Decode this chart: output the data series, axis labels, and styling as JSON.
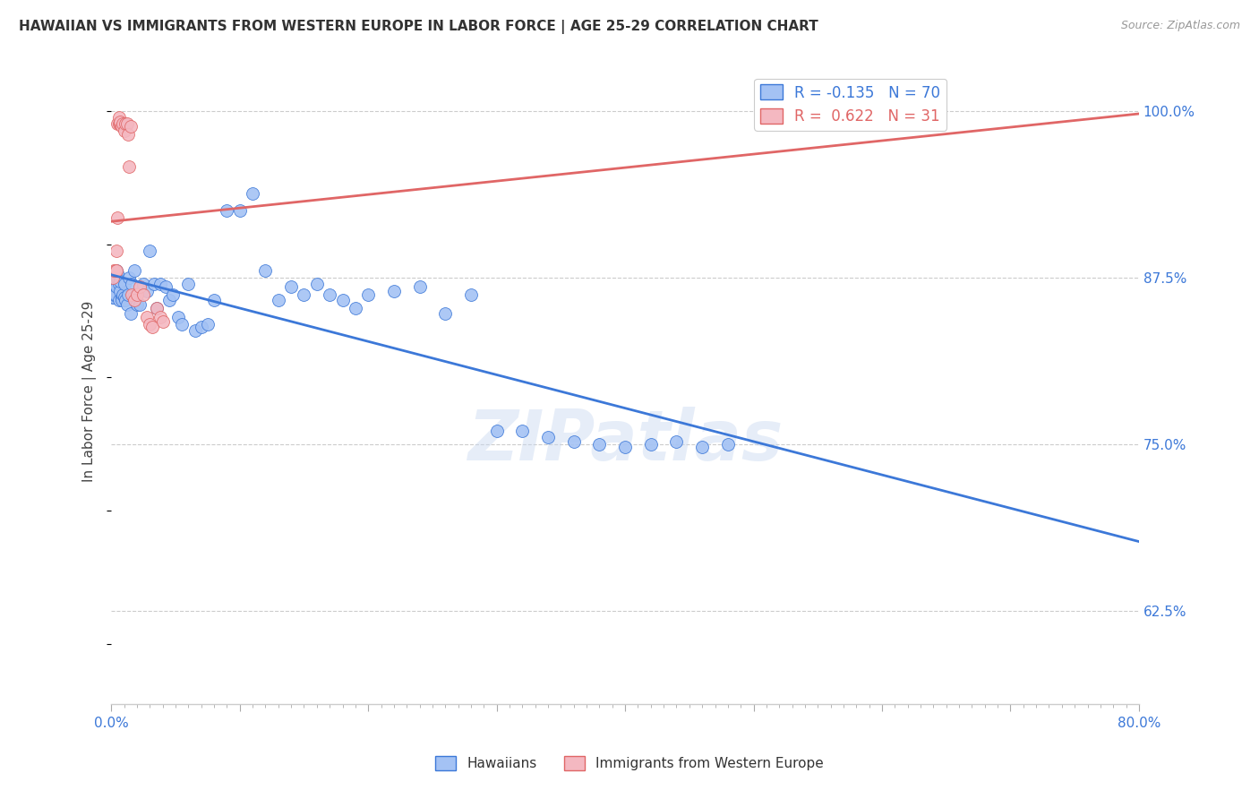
{
  "title": "HAWAIIAN VS IMMIGRANTS FROM WESTERN EUROPE IN LABOR FORCE | AGE 25-29 CORRELATION CHART",
  "source": "Source: ZipAtlas.com",
  "ylabel": "In Labor Force | Age 25-29",
  "ytick_labels": [
    "62.5%",
    "75.0%",
    "87.5%",
    "100.0%"
  ],
  "ytick_values": [
    0.625,
    0.75,
    0.875,
    1.0
  ],
  "legend_label1": "Hawaiians",
  "legend_label2": "Immigrants from Western Europe",
  "r1": "-0.135",
  "n1": "70",
  "r2": "0.622",
  "n2": "31",
  "color_blue": "#a4c2f4",
  "color_pink": "#f4b8c1",
  "color_blue_line": "#3c78d8",
  "color_pink_line": "#e06666",
  "blue_x": [
    0.001,
    0.002,
    0.002,
    0.003,
    0.003,
    0.004,
    0.004,
    0.005,
    0.005,
    0.006,
    0.006,
    0.007,
    0.007,
    0.008,
    0.008,
    0.009,
    0.01,
    0.01,
    0.011,
    0.012,
    0.013,
    0.014,
    0.015,
    0.016,
    0.017,
    0.018,
    0.02,
    0.022,
    0.025,
    0.028,
    0.03,
    0.033,
    0.035,
    0.038,
    0.042,
    0.045,
    0.048,
    0.052,
    0.055,
    0.06,
    0.065,
    0.07,
    0.075,
    0.08,
    0.09,
    0.1,
    0.11,
    0.12,
    0.13,
    0.14,
    0.15,
    0.16,
    0.17,
    0.18,
    0.19,
    0.2,
    0.22,
    0.24,
    0.26,
    0.28,
    0.3,
    0.32,
    0.34,
    0.36,
    0.38,
    0.4,
    0.42,
    0.44,
    0.46,
    0.48
  ],
  "blue_y": [
    0.86,
    0.86,
    0.862,
    0.862,
    0.87,
    0.868,
    0.88,
    0.875,
    0.878,
    0.87,
    0.858,
    0.865,
    0.872,
    0.86,
    0.858,
    0.862,
    0.87,
    0.86,
    0.858,
    0.855,
    0.862,
    0.875,
    0.848,
    0.87,
    0.86,
    0.88,
    0.855,
    0.855,
    0.87,
    0.865,
    0.895,
    0.87,
    0.852,
    0.87,
    0.868,
    0.858,
    0.862,
    0.845,
    0.84,
    0.87,
    0.835,
    0.838,
    0.84,
    0.858,
    0.925,
    0.925,
    0.938,
    0.88,
    0.858,
    0.868,
    0.862,
    0.87,
    0.862,
    0.858,
    0.852,
    0.862,
    0.865,
    0.868,
    0.848,
    0.862,
    0.76,
    0.76,
    0.755,
    0.752,
    0.75,
    0.748,
    0.75,
    0.752,
    0.748,
    0.75
  ],
  "pink_x": [
    0.001,
    0.002,
    0.003,
    0.004,
    0.004,
    0.005,
    0.005,
    0.006,
    0.006,
    0.007,
    0.007,
    0.008,
    0.009,
    0.01,
    0.011,
    0.012,
    0.013,
    0.014,
    0.015,
    0.016,
    0.018,
    0.02,
    0.022,
    0.025,
    0.028,
    0.03,
    0.032,
    0.035,
    0.038,
    0.04,
    0.6
  ],
  "pink_y": [
    0.875,
    0.88,
    0.88,
    0.88,
    0.895,
    0.92,
    0.99,
    0.99,
    0.995,
    0.99,
    0.992,
    0.988,
    0.99,
    0.985,
    0.99,
    0.99,
    0.982,
    0.958,
    0.988,
    0.862,
    0.858,
    0.862,
    0.868,
    0.862,
    0.845,
    0.84,
    0.838,
    0.852,
    0.845,
    0.842,
    1.0
  ],
  "xmin": 0.0,
  "xmax": 0.8,
  "ymin": 0.555,
  "ymax": 1.025,
  "watermark": "ZIPatlas"
}
